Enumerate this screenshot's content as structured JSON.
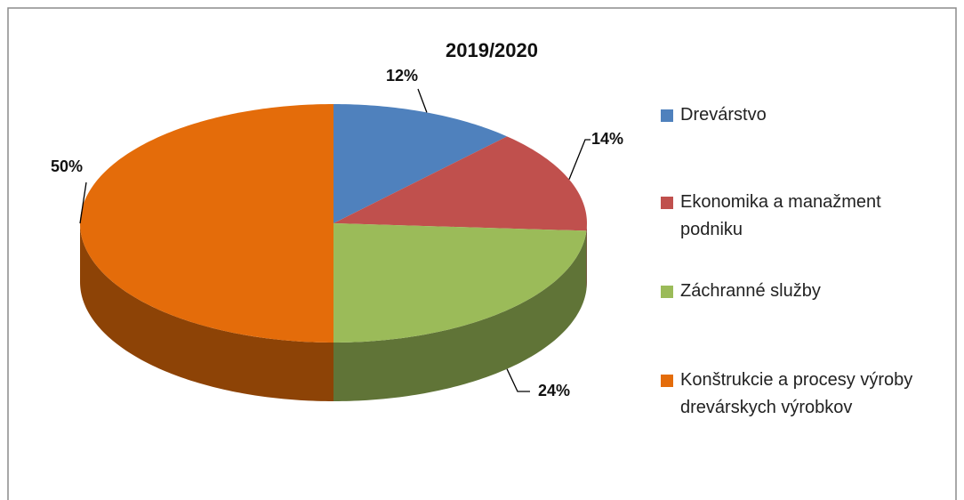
{
  "chart_data": {
    "type": "pie",
    "title": "2019/2020",
    "categories": [
      "Drevárstvo",
      "Ekonomika a manažment podniku",
      "Záchranné služby",
      "Konštrukcie a procesy výroby drevárskych výrobkov"
    ],
    "values": [
      12,
      14,
      24,
      50
    ],
    "value_labels": [
      "12%",
      "14%",
      "24%",
      "50%"
    ],
    "colors": [
      "#4f81bd",
      "#c0504d",
      "#9bbb59",
      "#e46c0a"
    ],
    "legend": "right"
  }
}
